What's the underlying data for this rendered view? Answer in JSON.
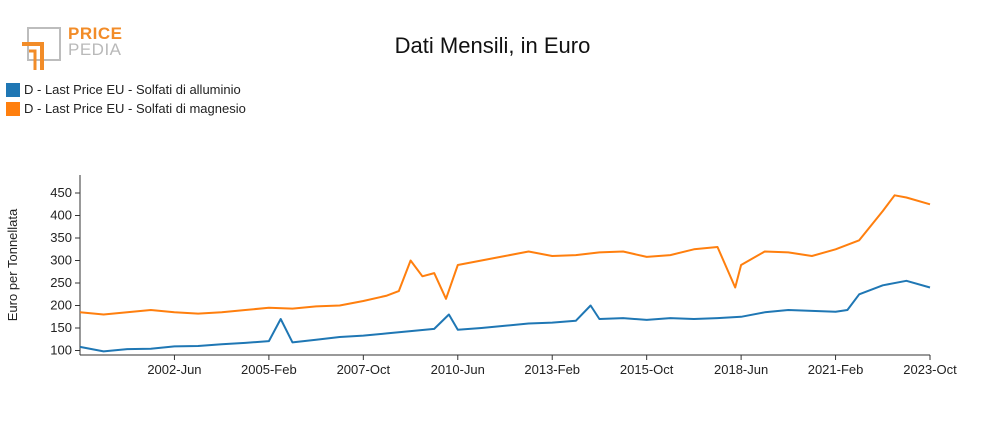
{
  "logo": {
    "line1": "PRICE",
    "line2": "PEDIA"
  },
  "colors": {
    "aluminium": "#1f77b4",
    "magnesium": "#ff7f0e",
    "logo_orange": "#f28c28",
    "logo_gray": "#b9b9b9"
  },
  "chart_data": {
    "type": "line",
    "title": "Dati Mensili, in Euro",
    "xlabel": "",
    "ylabel": "Euro per Tonnellata",
    "ylim": [
      90,
      490
    ],
    "yticks": [
      100,
      150,
      200,
      250,
      300,
      350,
      400,
      450
    ],
    "xlim": [
      "1999-10",
      "2023-10"
    ],
    "xticks": [
      "2002-Jun",
      "2005-Feb",
      "2007-Oct",
      "2010-Jun",
      "2013-Feb",
      "2015-Oct",
      "2018-Jun",
      "2021-Feb",
      "2023-Oct"
    ],
    "xtick_dates": [
      "2002-06",
      "2005-02",
      "2007-10",
      "2010-06",
      "2013-02",
      "2015-10",
      "2018-06",
      "2021-02",
      "2023-10"
    ],
    "grid": false,
    "legend_position": "top-left",
    "series": [
      {
        "name": "D - Last Price EU - Solfati di alluminio",
        "color": "#1f77b4",
        "points": [
          [
            "1999-10",
            108
          ],
          [
            "2000-06",
            98
          ],
          [
            "2001-02",
            103
          ],
          [
            "2001-10",
            104
          ],
          [
            "2002-06",
            109
          ],
          [
            "2003-02",
            110
          ],
          [
            "2003-10",
            114
          ],
          [
            "2004-06",
            117
          ],
          [
            "2005-02",
            121
          ],
          [
            "2005-06",
            170
          ],
          [
            "2005-10",
            118
          ],
          [
            "2006-06",
            124
          ],
          [
            "2007-02",
            130
          ],
          [
            "2007-10",
            133
          ],
          [
            "2008-06",
            138
          ],
          [
            "2009-02",
            143
          ],
          [
            "2009-10",
            148
          ],
          [
            "2010-03",
            180
          ],
          [
            "2010-06",
            146
          ],
          [
            "2011-02",
            150
          ],
          [
            "2011-10",
            155
          ],
          [
            "2012-06",
            160
          ],
          [
            "2013-02",
            162
          ],
          [
            "2013-10",
            166
          ],
          [
            "2014-03",
            200
          ],
          [
            "2014-06",
            170
          ],
          [
            "2015-02",
            172
          ],
          [
            "2015-10",
            168
          ],
          [
            "2016-06",
            172
          ],
          [
            "2017-02",
            170
          ],
          [
            "2017-10",
            172
          ],
          [
            "2018-06",
            175
          ],
          [
            "2019-02",
            185
          ],
          [
            "2019-10",
            190
          ],
          [
            "2020-06",
            188
          ],
          [
            "2021-02",
            186
          ],
          [
            "2021-06",
            190
          ],
          [
            "2021-10",
            225
          ],
          [
            "2022-06",
            245
          ],
          [
            "2023-02",
            255
          ],
          [
            "2023-10",
            240
          ]
        ]
      },
      {
        "name": "D - Last Price EU - Solfati di magnesio",
        "color": "#ff7f0e",
        "points": [
          [
            "1999-10",
            185
          ],
          [
            "2000-06",
            180
          ],
          [
            "2001-02",
            185
          ],
          [
            "2001-10",
            190
          ],
          [
            "2002-06",
            185
          ],
          [
            "2003-02",
            182
          ],
          [
            "2003-10",
            185
          ],
          [
            "2004-06",
            190
          ],
          [
            "2005-02",
            195
          ],
          [
            "2005-10",
            193
          ],
          [
            "2006-06",
            198
          ],
          [
            "2007-02",
            200
          ],
          [
            "2007-10",
            210
          ],
          [
            "2008-06",
            222
          ],
          [
            "2008-10",
            232
          ],
          [
            "2009-02",
            300
          ],
          [
            "2009-06",
            265
          ],
          [
            "2009-10",
            272
          ],
          [
            "2010-02",
            215
          ],
          [
            "2010-06",
            290
          ],
          [
            "2011-02",
            300
          ],
          [
            "2011-10",
            310
          ],
          [
            "2012-06",
            320
          ],
          [
            "2013-02",
            310
          ],
          [
            "2013-10",
            312
          ],
          [
            "2014-06",
            318
          ],
          [
            "2015-02",
            320
          ],
          [
            "2015-10",
            308
          ],
          [
            "2016-06",
            312
          ],
          [
            "2017-02",
            325
          ],
          [
            "2017-10",
            330
          ],
          [
            "2018-04",
            240
          ],
          [
            "2018-06",
            290
          ],
          [
            "2019-02",
            320
          ],
          [
            "2019-10",
            318
          ],
          [
            "2020-06",
            310
          ],
          [
            "2021-02",
            325
          ],
          [
            "2021-10",
            345
          ],
          [
            "2022-06",
            410
          ],
          [
            "2022-10",
            445
          ],
          [
            "2023-02",
            440
          ],
          [
            "2023-10",
            425
          ]
        ]
      }
    ]
  }
}
